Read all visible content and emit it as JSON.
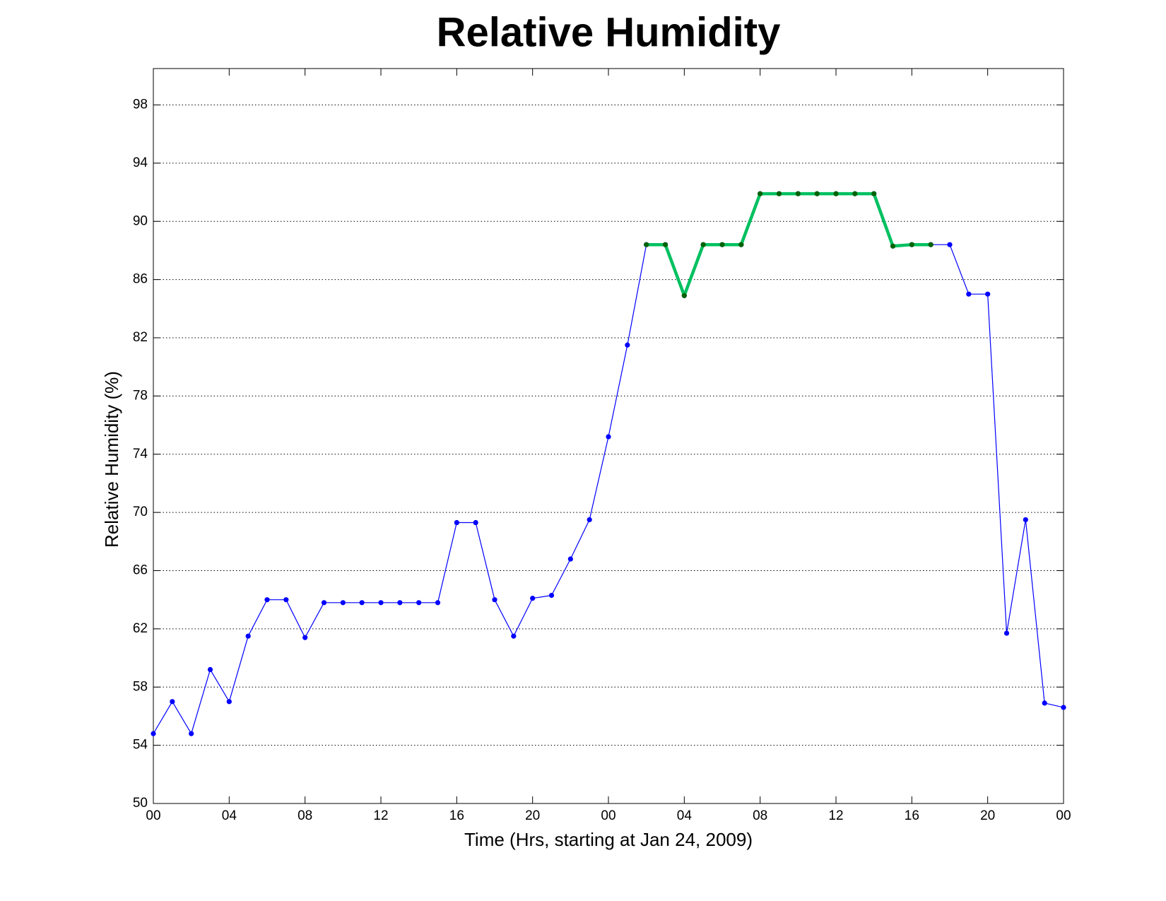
{
  "chart_data": {
    "type": "line",
    "title": "Relative Humidity",
    "x_label": "Time (Hrs, starting at Jan 24, 2009)",
    "y_label": "Relative Humidity (%)",
    "x": [
      0,
      1,
      2,
      3,
      4,
      5,
      6,
      7,
      8,
      9,
      10,
      11,
      12,
      13,
      14,
      15,
      16,
      17,
      18,
      19,
      20,
      21,
      22,
      23,
      24,
      25,
      26,
      27,
      28,
      29,
      30,
      31,
      32,
      33,
      34,
      35,
      36,
      37,
      38,
      39,
      40,
      41,
      42,
      43,
      44,
      45,
      46,
      47,
      48
    ],
    "series": [
      {
        "color": "#0000ff",
        "marker_color": "#0000ff",
        "line_width": 1.2,
        "values": [
          54.8,
          57,
          54.8,
          59.2,
          57,
          61.5,
          64,
          64,
          61.4,
          63.8,
          63.8,
          63.8,
          63.8,
          63.8,
          63.8,
          63.8,
          69.3,
          69.3,
          64,
          61.5,
          64.1,
          64.3,
          66.8,
          69.5,
          75.2,
          81.5,
          88.4,
          88.4,
          84.9,
          88.4,
          88.4,
          88.4,
          91.9,
          91.9,
          91.9,
          91.9,
          91.9,
          91.9,
          91.9,
          88.3,
          88.4,
          88.4,
          88.4,
          85,
          85,
          61.7,
          69.5,
          56.9,
          56.6
        ]
      },
      {
        "color": "#00c060",
        "marker_color": "#006400",
        "line_width": 4.5,
        "values": [
          null,
          null,
          null,
          null,
          null,
          null,
          null,
          null,
          null,
          null,
          null,
          null,
          null,
          null,
          null,
          null,
          null,
          null,
          null,
          null,
          null,
          null,
          null,
          null,
          null,
          null,
          88.4,
          88.4,
          84.9,
          88.4,
          88.4,
          88.4,
          91.9,
          91.9,
          91.9,
          91.9,
          91.9,
          91.9,
          91.9,
          88.3,
          88.4,
          88.4,
          null,
          null,
          null,
          null,
          null,
          null,
          null
        ]
      }
    ],
    "xlim": [
      0,
      48
    ],
    "ylim": [
      50,
      100.5
    ],
    "xticks": [
      {
        "value": 0,
        "label": "00"
      },
      {
        "value": 4,
        "label": "04"
      },
      {
        "value": 8,
        "label": "08"
      },
      {
        "value": 12,
        "label": "12"
      },
      {
        "value": 16,
        "label": "16"
      },
      {
        "value": 20,
        "label": "20"
      },
      {
        "value": 24,
        "label": "00"
      },
      {
        "value": 28,
        "label": "04"
      },
      {
        "value": 32,
        "label": "08"
      },
      {
        "value": 36,
        "label": "12"
      },
      {
        "value": 40,
        "label": "16"
      },
      {
        "value": 44,
        "label": "20"
      },
      {
        "value": 48,
        "label": "00"
      }
    ],
    "yticks": [
      50,
      54,
      58,
      62,
      66,
      70,
      74,
      78,
      82,
      86,
      90,
      94,
      98
    ],
    "grid": "y"
  }
}
